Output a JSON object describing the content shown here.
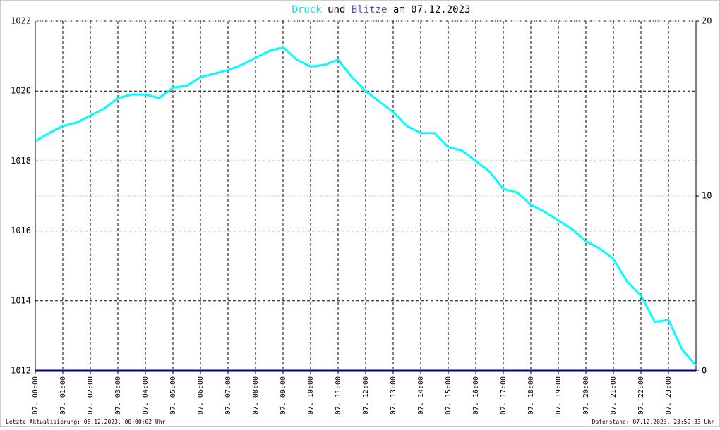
{
  "chart_data": {
    "type": "line",
    "title_parts": [
      "und",
      "am 07.12.2023"
    ],
    "x": [
      0,
      0.5,
      1,
      1.5,
      2,
      2.5,
      3,
      3.5,
      4,
      4.5,
      5,
      5.5,
      6,
      6.5,
      7,
      7.5,
      8,
      8.5,
      9,
      9.5,
      10,
      10.5,
      11,
      11.5,
      12,
      12.5,
      13,
      13.5,
      14,
      14.5,
      15,
      15.5,
      16,
      16.5,
      17,
      17.5,
      18,
      18.5,
      19,
      19.5,
      20,
      20.5,
      21,
      21.5,
      22,
      22.5,
      23,
      23.5,
      24
    ],
    "series": [
      {
        "name": "Druck",
        "color": "#00ffff",
        "axis": "y",
        "values": [
          1018.57,
          1018.8,
          1019.0,
          1019.1,
          1019.3,
          1019.5,
          1019.8,
          1019.9,
          1019.9,
          1019.8,
          1020.1,
          1020.15,
          1020.4,
          1020.5,
          1020.6,
          1020.75,
          1020.95,
          1021.15,
          1021.25,
          1020.9,
          1020.7,
          1020.75,
          1020.9,
          1020.4,
          1020.0,
          1019.7,
          1019.4,
          1019.0,
          1018.8,
          1018.8,
          1018.4,
          1018.3,
          1018.0,
          1017.7,
          1017.2,
          1017.1,
          1016.75,
          1016.55,
          1016.3,
          1016.05,
          1015.7,
          1015.5,
          1015.2,
          1014.55,
          1014.15,
          1013.4,
          1013.45,
          1012.6,
          1012.15
        ]
      },
      {
        "name": "Blitze",
        "color": "#000080",
        "axis": "y2",
        "values": [
          0,
          0,
          0,
          0,
          0,
          0,
          0,
          0,
          0,
          0,
          0,
          0,
          0,
          0,
          0,
          0,
          0,
          0,
          0,
          0,
          0,
          0,
          0,
          0,
          0,
          0,
          0,
          0,
          0,
          0,
          0,
          0,
          0,
          0,
          0,
          0,
          0,
          0,
          0,
          0,
          0,
          0,
          0,
          0,
          0,
          0,
          0,
          0,
          0
        ]
      }
    ],
    "xlim": [
      0,
      24
    ],
    "xticks": [
      {
        "value": 0,
        "label": "07. 00:00"
      },
      {
        "value": 1,
        "label": "07. 01:00"
      },
      {
        "value": 2,
        "label": "07. 02:00"
      },
      {
        "value": 3,
        "label": "07. 03:00"
      },
      {
        "value": 4,
        "label": "07. 04:00"
      },
      {
        "value": 5,
        "label": "07. 05:00"
      },
      {
        "value": 6,
        "label": "07. 06:00"
      },
      {
        "value": 7,
        "label": "07. 07:00"
      },
      {
        "value": 8,
        "label": "07. 08:00"
      },
      {
        "value": 9,
        "label": "07. 09:00"
      },
      {
        "value": 10,
        "label": "07. 10:00"
      },
      {
        "value": 11,
        "label": "07. 11:00"
      },
      {
        "value": 12,
        "label": "07. 12:00"
      },
      {
        "value": 13,
        "label": "07. 13:00"
      },
      {
        "value": 14,
        "label": "07. 14:00"
      },
      {
        "value": 15,
        "label": "07. 15:00"
      },
      {
        "value": 16,
        "label": "07. 16:00"
      },
      {
        "value": 17,
        "label": "07. 17:00"
      },
      {
        "value": 18,
        "label": "07. 18:00"
      },
      {
        "value": 19,
        "label": "07. 19:00"
      },
      {
        "value": 20,
        "label": "07. 20:00"
      },
      {
        "value": 21,
        "label": "07. 21:00"
      },
      {
        "value": 22,
        "label": "07. 22:00"
      },
      {
        "value": 23,
        "label": "07. 23:00"
      }
    ],
    "ylim": [
      1012,
      1022
    ],
    "yticks": [
      1012,
      1014,
      1016,
      1018,
      1020,
      1022
    ],
    "y2lim": [
      0,
      20
    ],
    "y2ticks": [
      0,
      10,
      20
    ],
    "grid": true,
    "footer_left": "Letzte Aktualisierung: 08.12.2023, 00:00:02 Uhr",
    "footer_right": "Datenstand: 07.12.2023, 23:59:33 Uhr"
  }
}
